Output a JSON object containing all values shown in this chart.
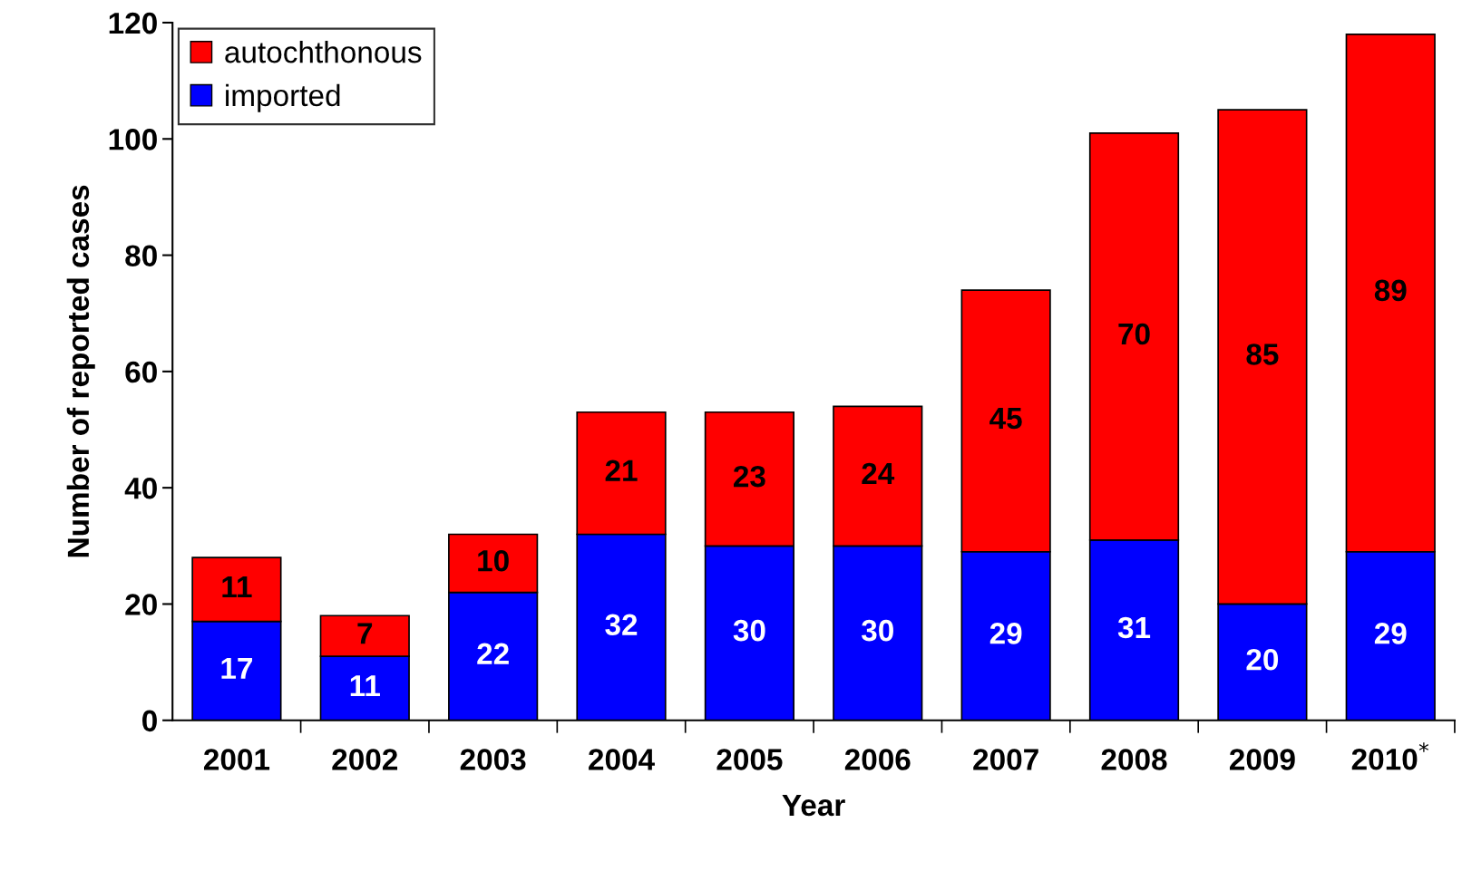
{
  "chart_data": {
    "type": "bar",
    "stacked": true,
    "xlabel": "Year",
    "ylabel": "Number of reported cases",
    "categories": [
      "2001",
      "2002",
      "2003",
      "2004",
      "2005",
      "2006",
      "2007",
      "2008",
      "2009",
      "2010$^{*}$"
    ],
    "series": [
      {
        "name": "imported",
        "color": "#0000ff",
        "values": [
          17,
          11,
          22,
          32,
          30,
          30,
          29,
          31,
          20,
          29
        ]
      },
      {
        "name": "autochthonous",
        "color": "#ff0000",
        "values": [
          11,
          7,
          10,
          21,
          23,
          24,
          45,
          70,
          85,
          89
        ]
      }
    ],
    "ylim": [
      0,
      120
    ],
    "yticks": [
      0,
      20,
      40,
      60,
      80,
      100,
      120
    ],
    "data_labels": true,
    "legend": "top left",
    "grid": false
  }
}
